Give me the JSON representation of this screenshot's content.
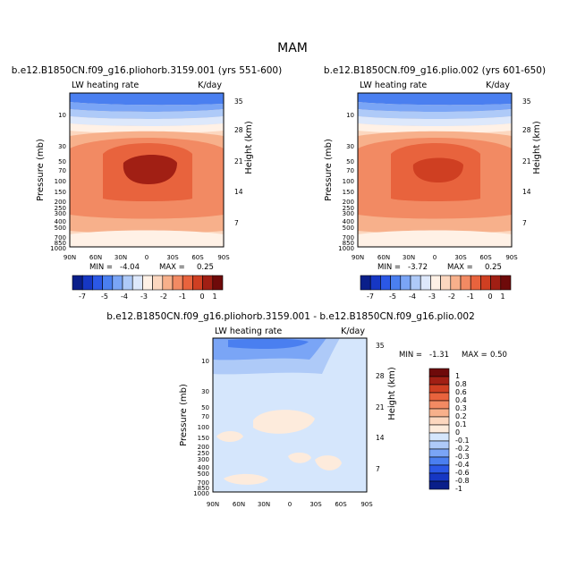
{
  "season": "MAM",
  "chart_data": [
    {
      "type": "contour",
      "title": "b.e12.B1850CN.f09_g16.pliohorb.3159.001 (yrs 551-600)",
      "left_label": "LW heating rate",
      "right_label": "K/day",
      "ylabel": "Pressure (mb)",
      "ylabel_right": "Height (km)",
      "x_ticks": [
        "90N",
        "60N",
        "30N",
        "0",
        "30S",
        "60S",
        "90S"
      ],
      "p_ticks": [
        "10",
        "30",
        "50",
        "70",
        "100",
        "150",
        "200",
        "250",
        "300",
        "400",
        "500",
        "700",
        "850",
        "1000"
      ],
      "h_ticks": [
        "35",
        "28",
        "21",
        "14",
        "7"
      ],
      "stats": {
        "min_label": "MIN =",
        "min_value": "-4.04",
        "max_label": "MAX =",
        "max_value": "0.25"
      },
      "levels": [
        -7,
        -6,
        -5,
        -4.5,
        -4,
        -3.5,
        -3,
        -2.5,
        -2,
        -1.5,
        -1,
        -0.5,
        0,
        0.5,
        1
      ],
      "colorbar_labels": [
        "-7",
        "-5",
        "-4",
        "-3",
        "-2",
        "-1",
        "0",
        "1"
      ]
    },
    {
      "type": "contour",
      "title": "b.e12.B1850CN.f09_g16.plio.002 (yrs 601-650)",
      "left_label": "LW heating rate",
      "right_label": "K/day",
      "ylabel": "Pressure (mb)",
      "ylabel_right": "Height (km)",
      "x_ticks": [
        "90N",
        "60N",
        "30N",
        "0",
        "30S",
        "60S",
        "90S"
      ],
      "p_ticks": [
        "10",
        "30",
        "50",
        "70",
        "100",
        "150",
        "200",
        "250",
        "300",
        "400",
        "500",
        "700",
        "850",
        "1000"
      ],
      "h_ticks": [
        "35",
        "28",
        "21",
        "14",
        "7"
      ],
      "stats": {
        "min_label": "MIN =",
        "min_value": "-3.72",
        "max_label": "MAX =",
        "max_value": "0.25"
      },
      "colorbar_labels": [
        "-7",
        "-5",
        "-4",
        "-3",
        "-2",
        "-1",
        "0",
        "1"
      ]
    },
    {
      "type": "contour",
      "title": "b.e12.B1850CN.f09_g16.pliohorb.3159.001 - b.e12.B1850CN.f09_g16.plio.002",
      "left_label": "LW heating rate",
      "right_label": "K/day",
      "ylabel": "Pressure (mb)",
      "ylabel_right": "Height (km)",
      "x_ticks": [
        "90N",
        "60N",
        "30N",
        "0",
        "30S",
        "60S",
        "90S"
      ],
      "p_ticks": [
        "10",
        "30",
        "50",
        "70",
        "100",
        "150",
        "200",
        "250",
        "300",
        "400",
        "500",
        "700",
        "850",
        "1000"
      ],
      "h_ticks": [
        "35",
        "28",
        "21",
        "14",
        "7"
      ],
      "stats": {
        "min_label": "MIN =",
        "min_value": "-1.31",
        "max_label": "MAX =",
        "max_value": "0.50"
      },
      "levels": [
        -1,
        -0.8,
        -0.6,
        -0.4,
        -0.3,
        -0.2,
        -0.1,
        0,
        0.1,
        0.2,
        0.3,
        0.4,
        0.6,
        0.8,
        1
      ],
      "colorbar_labels": [
        "1",
        "0.8",
        "0.6",
        "0.4",
        "0.3",
        "0.2",
        "0.1",
        "0",
        "-0.1",
        "-0.2",
        "-0.3",
        "-0.4",
        "-0.6",
        "-0.8",
        "-1"
      ]
    }
  ],
  "colors": {
    "main_scale": [
      "#0a1f8a",
      "#1637c4",
      "#2b58e6",
      "#4a7ff0",
      "#7aa5f6",
      "#aecaf8",
      "#dde8fb",
      "#fff1e6",
      "#fcd7bf",
      "#f7b08b",
      "#f28a63",
      "#e8633d",
      "#cf3f22",
      "#a11f14",
      "#6e0a0a"
    ],
    "diff_scale": [
      "#6e0a0a",
      "#a11f14",
      "#cf3f22",
      "#e8633d",
      "#f28a63",
      "#f7b08b",
      "#fcd7bf",
      "#fdebdc",
      "#d5e6fc",
      "#aecaf8",
      "#7aa5f6",
      "#4a7ff0",
      "#2b58e6",
      "#1637c4",
      "#0a1f8a"
    ]
  }
}
